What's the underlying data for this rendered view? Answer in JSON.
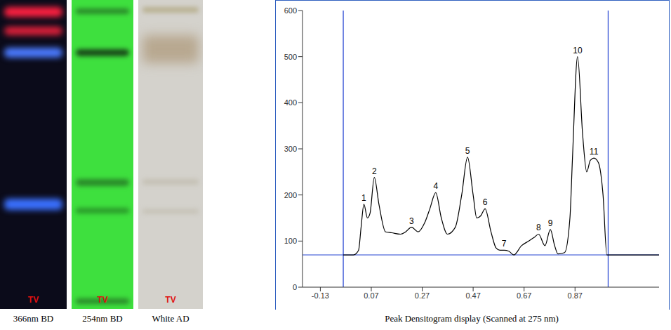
{
  "plates": [
    {
      "caption": "366nm BD",
      "label": "TV"
    },
    {
      "caption": "254nm BD",
      "label": "TV"
    },
    {
      "caption": "White AD",
      "label": "TV"
    }
  ],
  "chart_data": {
    "type": "line",
    "title": "Peak Densitogram display (Scanned at 275 nm)",
    "x": [
      -0.04,
      0.0,
      0.02,
      0.03,
      0.041,
      0.055,
      0.065,
      0.082,
      0.1,
      0.126,
      0.15,
      0.185,
      0.205,
      0.228,
      0.254,
      0.28,
      0.3,
      0.323,
      0.345,
      0.369,
      0.4,
      0.425,
      0.448,
      0.47,
      0.484,
      0.5,
      0.517,
      0.54,
      0.56,
      0.575,
      0.591,
      0.61,
      0.63,
      0.66,
      0.688,
      0.71,
      0.727,
      0.752,
      0.773,
      0.79,
      0.803,
      0.829,
      0.85,
      0.86,
      0.88,
      0.9,
      0.916,
      0.93,
      0.944,
      0.962,
      0.98,
      0.995,
      1.05,
      1.2
    ],
    "values": [
      70,
      70,
      80,
      130,
      180,
      150,
      160,
      238,
      180,
      120,
      118,
      115,
      120,
      130,
      120,
      140,
      170,
      205,
      150,
      115,
      130,
      200,
      282,
      200,
      150,
      155,
      170,
      120,
      85,
      80,
      80,
      78,
      70,
      90,
      100,
      108,
      115,
      90,
      125,
      90,
      72,
      75,
      150,
      280,
      500,
      330,
      250,
      275,
      280,
      270,
      200,
      70,
      70,
      70
    ],
    "color": "#000000",
    "xlim": [
      -0.2,
      1.2
    ],
    "xticks": [
      -0.13,
      0.07,
      0.27,
      0.47,
      0.67,
      0.87
    ],
    "ylim": [
      0,
      600
    ],
    "yticks": [
      0,
      100,
      200,
      300,
      400,
      500,
      600
    ],
    "grid": false,
    "baseline": 70,
    "vlines": [
      -0.04,
      1.0
    ],
    "peak_labels": [
      {
        "text": "1",
        "x": 0.041,
        "y": 180
      },
      {
        "text": "2",
        "x": 0.082,
        "y": 238
      },
      {
        "text": "3",
        "x": 0.228,
        "y": 130
      },
      {
        "text": "4",
        "x": 0.323,
        "y": 205
      },
      {
        "text": "5",
        "x": 0.448,
        "y": 282
      },
      {
        "text": "6",
        "x": 0.517,
        "y": 170
      },
      {
        "text": "7",
        "x": 0.591,
        "y": 80
      },
      {
        "text": "8",
        "x": 0.727,
        "y": 115
      },
      {
        "text": "9",
        "x": 0.773,
        "y": 125
      },
      {
        "text": "10",
        "x": 0.88,
        "y": 500
      },
      {
        "text": "11",
        "x": 0.944,
        "y": 280
      }
    ]
  }
}
